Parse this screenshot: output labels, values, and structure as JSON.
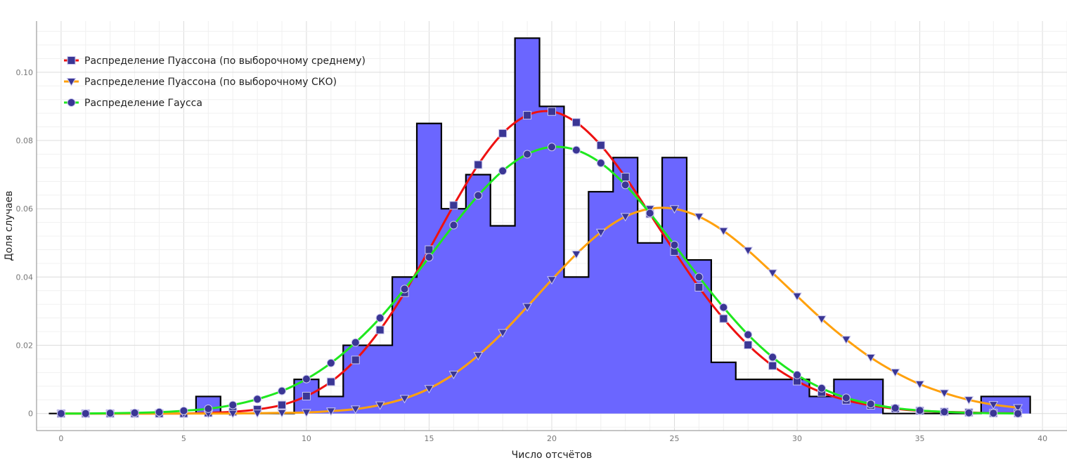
{
  "chart_data": {
    "type": "bar",
    "xlabel": "Число отсчётов",
    "ylabel": "Доля случаев",
    "xlim": [
      -1,
      41
    ],
    "ylim": [
      -0.005,
      0.115
    ],
    "x_ticks": [
      0,
      5,
      10,
      15,
      20,
      25,
      30,
      35,
      40
    ],
    "x_tick_labels": [
      "0",
      "5",
      "10",
      "15",
      "20",
      "25",
      "30",
      "35",
      "40"
    ],
    "y_ticks": [
      0,
      0.02,
      0.04,
      0.06,
      0.08,
      0.1
    ],
    "y_tick_labels": [
      "0",
      "0.02",
      "0.04",
      "0.06",
      "0.08",
      "0.10"
    ],
    "grid": true,
    "legend_position": "top-left",
    "histogram": {
      "color": "#6b66ff",
      "edge_color": "#000000",
      "bin_edges": [
        5.5,
        6.5,
        9.5,
        10.5,
        11.5,
        12.5,
        13.5,
        14.5,
        15.5,
        16.5,
        17.5,
        18.5,
        19.5,
        20.5,
        21.5,
        22.5,
        23.5,
        24.5,
        25.5,
        26.5,
        27.5,
        28.5,
        29.5,
        30.5,
        31.5,
        33.5,
        37.5,
        39.5
      ],
      "values": [
        0.005,
        0,
        0.01,
        0.005,
        0.02,
        0.02,
        0.04,
        0.085,
        0.06,
        0.07,
        0.055,
        0.11,
        0.09,
        0.04,
        0.065,
        0.075,
        0.05,
        0.075,
        0.045,
        0.015,
        0.01,
        0.01,
        0.01,
        0.005,
        0.01,
        0,
        0.005
      ]
    },
    "series": [
      {
        "name": "Распределение Пуассона (по выборочному среднему)",
        "color": "#ee1111",
        "marker": "square",
        "x": [
          0,
          1,
          2,
          3,
          4,
          5,
          6,
          7,
          8,
          9,
          10,
          11,
          12,
          13,
          14,
          15,
          16,
          17,
          18,
          19,
          20,
          21,
          22,
          23,
          24,
          25,
          26,
          27,
          28,
          29,
          30,
          31,
          32,
          33,
          34,
          35,
          36,
          37,
          38,
          39
        ],
        "values": [
          0,
          0,
          0,
          0,
          0,
          0,
          0.0002,
          0.0005,
          0.0012,
          0.0025,
          0.0051,
          0.0093,
          0.0157,
          0.0245,
          0.0354,
          0.048,
          0.061,
          0.0729,
          0.0821,
          0.0874,
          0.0885,
          0.0853,
          0.0786,
          0.0693,
          0.0585,
          0.0475,
          0.037,
          0.0278,
          0.0201,
          0.014,
          0.0095,
          0.0062,
          0.0039,
          0.0024,
          0.0014,
          0.0008,
          0.0005,
          0.0003,
          0.0001,
          0.0001
        ]
      },
      {
        "name": "Распределение Пуассона (по выборочному СКО)",
        "color": "#ffa10d",
        "marker": "triangle-down",
        "x": [
          0,
          1,
          2,
          3,
          4,
          5,
          6,
          7,
          8,
          9,
          10,
          11,
          12,
          13,
          14,
          15,
          16,
          17,
          18,
          19,
          20,
          21,
          22,
          23,
          24,
          25,
          26,
          27,
          28,
          29,
          30,
          31,
          32,
          33,
          34,
          35,
          36,
          37,
          38,
          39
        ],
        "values": [
          0,
          0,
          0,
          0,
          0,
          0,
          0,
          0,
          0.0001,
          0.0002,
          0.0003,
          0.0007,
          0.0013,
          0.0025,
          0.0044,
          0.0073,
          0.0115,
          0.017,
          0.0237,
          0.0313,
          0.0392,
          0.0467,
          0.0531,
          0.0577,
          0.06,
          0.06,
          0.0577,
          0.0535,
          0.0478,
          0.0412,
          0.0344,
          0.0277,
          0.0217,
          0.0164,
          0.0121,
          0.0086,
          0.006,
          0.004,
          0.0026,
          0.0017
        ]
      },
      {
        "name": "Распределение Гаусса",
        "color": "#1fe81f",
        "marker": "circle",
        "x": [
          0,
          1,
          2,
          3,
          4,
          5,
          6,
          7,
          8,
          9,
          10,
          11,
          12,
          13,
          14,
          15,
          16,
          17,
          18,
          19,
          20,
          21,
          22,
          23,
          24,
          25,
          26,
          27,
          28,
          29,
          30,
          31,
          32,
          33,
          34,
          35,
          36,
          37,
          38,
          39
        ],
        "values": [
          0,
          0,
          0.0001,
          0.0002,
          0.0004,
          0.0008,
          0.0014,
          0.0025,
          0.0042,
          0.0066,
          0.0101,
          0.0148,
          0.0208,
          0.028,
          0.0365,
          0.0458,
          0.0552,
          0.0639,
          0.0711,
          0.076,
          0.0781,
          0.0772,
          0.0734,
          0.067,
          0.0587,
          0.0494,
          0.04,
          0.0311,
          0.0231,
          0.0165,
          0.0113,
          0.0074,
          0.0046,
          0.0028,
          0.0016,
          0.0009,
          0.0005,
          0.0002,
          0.0001,
          0
        ]
      }
    ]
  }
}
